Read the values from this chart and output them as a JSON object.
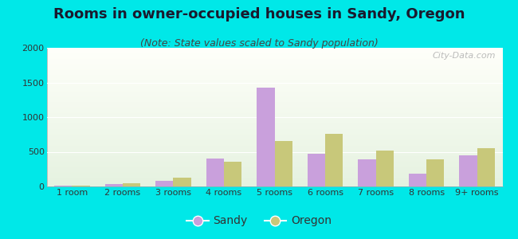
{
  "title": "Rooms in owner-occupied houses in Sandy, Oregon",
  "subtitle": "(Note: State values scaled to Sandy population)",
  "categories": [
    "1 room",
    "2 rooms",
    "3 rooms",
    "4 rooms",
    "5 rooms",
    "6 rooms",
    "7 rooms",
    "8 rooms",
    "9+ rooms"
  ],
  "sandy_values": [
    15,
    40,
    75,
    400,
    1430,
    470,
    390,
    185,
    445
  ],
  "oregon_values": [
    10,
    45,
    130,
    360,
    650,
    760,
    520,
    390,
    555
  ],
  "sandy_color": "#c9a0dc",
  "oregon_color": "#c8c87a",
  "bg_color": "#00e8e8",
  "ylim": [
    0,
    2000
  ],
  "yticks": [
    0,
    500,
    1000,
    1500,
    2000
  ],
  "title_fontsize": 13,
  "subtitle_fontsize": 9,
  "legend_fontsize": 10,
  "title_color": "#1a1a2e",
  "subtitle_color": "#444444",
  "tick_color": "#333333",
  "watermark_text": "City-Data.com",
  "bar_width": 0.35
}
